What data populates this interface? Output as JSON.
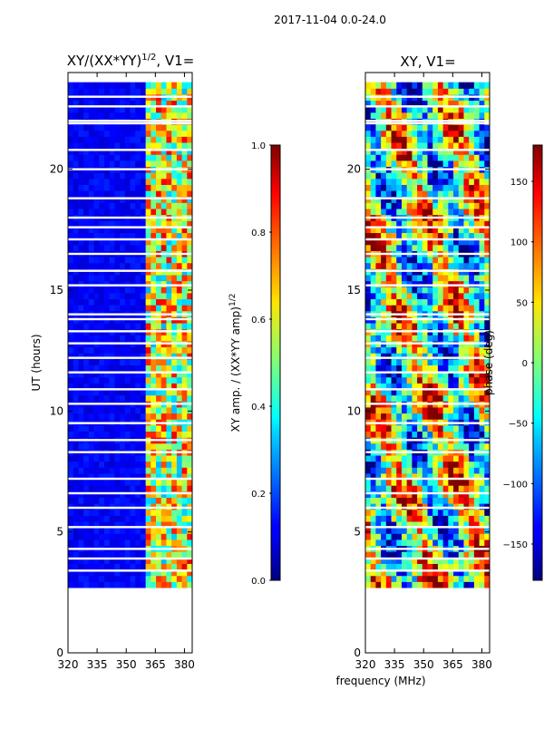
{
  "suptitle": "2017-11-04 0.0-24.0",
  "colors": {
    "background": "#ffffff",
    "axis": "#000000",
    "gap": "#ffffff"
  },
  "chart_data": [
    {
      "type": "heatmap",
      "title_main": "XY/(XX*YY)",
      "title_exp": "1/2",
      "title_suffix": ", V1=",
      "xlabel": "",
      "ylabel": "UT (hours)",
      "xlim": [
        320,
        384
      ],
      "ylim": [
        0,
        24
      ],
      "xticks": [
        320,
        335,
        350,
        365,
        380
      ],
      "yticks": [
        0,
        5,
        10,
        15,
        20
      ],
      "data_range_y": [
        2.7,
        23.6
      ],
      "colormap": "jet",
      "description_values": "low amplitude below ~360 MHz, elevated 0.3-0.9 for 360-383 MHz",
      "colorbar": {
        "label_main": "XY amp. / (XX*YY amp)",
        "label_exp": "1/2",
        "range": [
          0.0,
          1.0
        ],
        "ticks": [
          "0.0",
          "0.2",
          "0.4",
          "0.6",
          "0.8",
          "1.0"
        ]
      }
    },
    {
      "type": "heatmap",
      "title_main": "XY, V1=",
      "xlabel": "frequency (MHz)",
      "ylabel": "",
      "xlim": [
        320,
        384
      ],
      "ylim": [
        0,
        24
      ],
      "xticks": [
        320,
        335,
        350,
        365,
        380
      ],
      "yticks": [
        0,
        5,
        10,
        15,
        20
      ],
      "data_range_y": [
        2.7,
        23.6
      ],
      "colormap": "jet",
      "colorbar": {
        "label_main": "phase (deg)",
        "range": [
          -180,
          180
        ],
        "ticks": [
          "150",
          "100",
          "50",
          "0",
          "−50",
          "−100",
          "−150"
        ]
      }
    }
  ]
}
